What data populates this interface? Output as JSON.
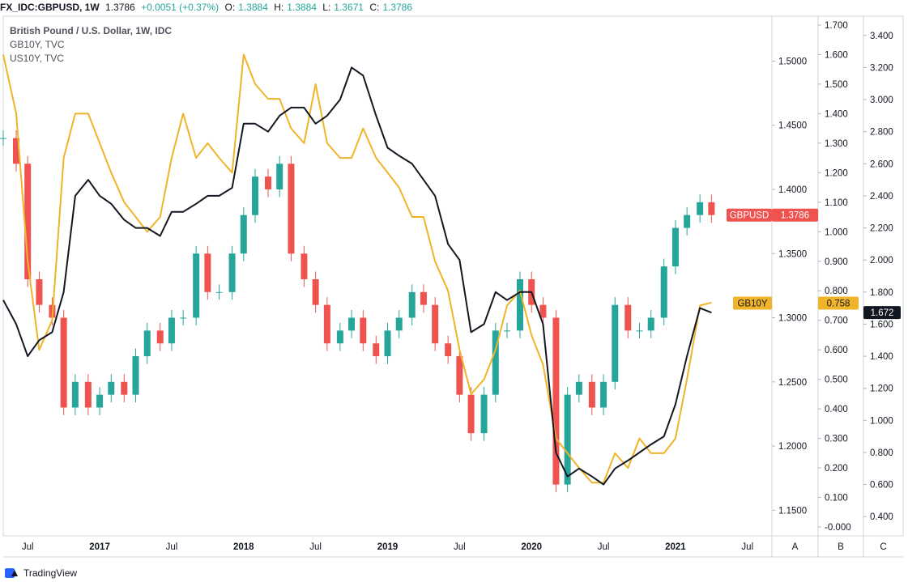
{
  "header": {
    "symbol": "FX_IDC:GBPUSD, 1W",
    "last": "1.3786",
    "change": "+0.0051 (+0.37%)",
    "open_label": "O:",
    "open": "1.3884",
    "high_label": "H:",
    "high": "1.3884",
    "low_label": "L:",
    "low": "1.3671",
    "close_label": "C:",
    "close": "1.3786"
  },
  "legend": {
    "main": "British Pound / U.S. Dollar, 1W, IDC",
    "series2": "GB10Y, TVC",
    "series3": "US10Y, TVC"
  },
  "footer": {
    "brand": "TradingView"
  },
  "scale_buttons": [
    "A",
    "B",
    "C"
  ],
  "chart_data": {
    "type": "line",
    "x_ticks": [
      "Jul",
      "2017",
      "Jul",
      "2018",
      "Jul",
      "2019",
      "Jul",
      "2020",
      "Jul",
      "2021",
      "Jul"
    ],
    "x_range": [
      2016.33,
      2021.67
    ],
    "axes": {
      "A": {
        "ticks": [
          "1.5000",
          "1.4500",
          "1.4000",
          "1.3500",
          "1.3000",
          "1.2500",
          "1.2000",
          "1.1500"
        ],
        "range": [
          1.13,
          1.535
        ]
      },
      "B": {
        "ticks": [
          "1.700",
          "1.600",
          "1.500",
          "1.400",
          "1.300",
          "1.200",
          "1.100",
          "1.000",
          "0.900",
          "0.800",
          "0.700",
          "0.600",
          "0.500",
          "0.400",
          "0.300",
          "0.200",
          "0.100",
          "-0.000"
        ],
        "range": [
          -0.03,
          1.73
        ]
      },
      "C": {
        "ticks": [
          "3.400",
          "3.200",
          "3.000",
          "2.800",
          "2.600",
          "2.400",
          "2.200",
          "2.000",
          "1.800",
          "1.600",
          "1.400",
          "1.200",
          "1.000",
          "0.800",
          "0.600",
          "0.400"
        ],
        "range": [
          0.28,
          3.52
        ]
      }
    },
    "series": [
      {
        "name": "GBPUSD",
        "axis": "A",
        "kind": "candles",
        "label": "1.3786",
        "x": [
          2016.33,
          2016.42,
          2016.5,
          2016.58,
          2016.67,
          2016.75,
          2016.83,
          2016.92,
          2017.0,
          2017.08,
          2017.17,
          2017.25,
          2017.33,
          2017.42,
          2017.5,
          2017.58,
          2017.67,
          2017.75,
          2017.83,
          2017.92,
          2018.0,
          2018.08,
          2018.17,
          2018.25,
          2018.33,
          2018.42,
          2018.5,
          2018.58,
          2018.67,
          2018.75,
          2018.83,
          2018.92,
          2019.0,
          2019.08,
          2019.17,
          2019.25,
          2019.33,
          2019.42,
          2019.5,
          2019.58,
          2019.67,
          2019.75,
          2019.83,
          2019.92,
          2020.0,
          2020.08,
          2020.17,
          2020.25,
          2020.33,
          2020.42,
          2020.5,
          2020.58,
          2020.67,
          2020.75,
          2020.83,
          2020.92,
          2021.0,
          2021.08,
          2021.17,
          2021.25
        ],
        "values": [
          1.44,
          1.42,
          1.33,
          1.31,
          1.3,
          1.23,
          1.25,
          1.23,
          1.24,
          1.25,
          1.24,
          1.27,
          1.29,
          1.28,
          1.3,
          1.3,
          1.35,
          1.32,
          1.32,
          1.35,
          1.38,
          1.41,
          1.4,
          1.42,
          1.35,
          1.33,
          1.31,
          1.28,
          1.29,
          1.3,
          1.28,
          1.27,
          1.29,
          1.3,
          1.32,
          1.31,
          1.28,
          1.27,
          1.24,
          1.21,
          1.24,
          1.29,
          1.29,
          1.33,
          1.31,
          1.3,
          1.17,
          1.24,
          1.25,
          1.23,
          1.25,
          1.31,
          1.29,
          1.29,
          1.3,
          1.34,
          1.37,
          1.38,
          1.39,
          1.38
        ]
      },
      {
        "name": "GB10Y",
        "axis": "B",
        "kind": "line",
        "label": "0.758",
        "color": "#f0b429",
        "x": [
          2016.33,
          2016.42,
          2016.5,
          2016.58,
          2016.67,
          2016.75,
          2016.83,
          2016.92,
          2017.0,
          2017.08,
          2017.17,
          2017.25,
          2017.33,
          2017.42,
          2017.5,
          2017.58,
          2017.67,
          2017.75,
          2017.83,
          2017.92,
          2018.0,
          2018.08,
          2018.17,
          2018.25,
          2018.33,
          2018.42,
          2018.5,
          2018.58,
          2018.67,
          2018.75,
          2018.83,
          2018.92,
          2019.0,
          2019.08,
          2019.17,
          2019.25,
          2019.33,
          2019.42,
          2019.5,
          2019.58,
          2019.67,
          2019.75,
          2019.83,
          2019.92,
          2020.0,
          2020.08,
          2020.17,
          2020.25,
          2020.33,
          2020.42,
          2020.5,
          2020.58,
          2020.67,
          2020.75,
          2020.83,
          2020.92,
          2021.0,
          2021.08,
          2021.17,
          2021.25
        ],
        "values": [
          1.6,
          1.4,
          0.9,
          0.6,
          0.7,
          1.25,
          1.4,
          1.4,
          1.3,
          1.2,
          1.1,
          1.05,
          1.0,
          1.05,
          1.25,
          1.4,
          1.25,
          1.3,
          1.25,
          1.2,
          1.6,
          1.5,
          1.45,
          1.45,
          1.35,
          1.3,
          1.5,
          1.3,
          1.25,
          1.25,
          1.35,
          1.25,
          1.2,
          1.15,
          1.05,
          1.05,
          0.9,
          0.8,
          0.6,
          0.45,
          0.5,
          0.6,
          0.75,
          0.8,
          0.65,
          0.55,
          0.3,
          0.25,
          0.2,
          0.15,
          0.15,
          0.25,
          0.2,
          0.3,
          0.25,
          0.25,
          0.3,
          0.5,
          0.75,
          0.76
        ]
      },
      {
        "name": "US10Y",
        "axis": "C",
        "kind": "line",
        "label": "1.672",
        "color": "#131722",
        "x": [
          2016.33,
          2016.42,
          2016.5,
          2016.58,
          2016.67,
          2016.75,
          2016.83,
          2016.92,
          2017.0,
          2017.08,
          2017.17,
          2017.25,
          2017.33,
          2017.42,
          2017.5,
          2017.58,
          2017.67,
          2017.75,
          2017.83,
          2017.92,
          2018.0,
          2018.08,
          2018.17,
          2018.25,
          2018.33,
          2018.42,
          2018.5,
          2018.58,
          2018.67,
          2018.75,
          2018.83,
          2018.92,
          2019.0,
          2019.08,
          2019.17,
          2019.25,
          2019.33,
          2019.42,
          2019.5,
          2019.58,
          2019.67,
          2019.75,
          2019.83,
          2019.92,
          2020.0,
          2020.08,
          2020.17,
          2020.25,
          2020.33,
          2020.42,
          2020.5,
          2020.58,
          2020.67,
          2020.75,
          2020.83,
          2020.92,
          2021.0,
          2021.08,
          2021.17,
          2021.25
        ],
        "values": [
          1.75,
          1.6,
          1.4,
          1.5,
          1.55,
          1.8,
          2.4,
          2.5,
          2.4,
          2.35,
          2.25,
          2.2,
          2.2,
          2.15,
          2.3,
          2.3,
          2.35,
          2.4,
          2.4,
          2.45,
          2.85,
          2.85,
          2.8,
          2.9,
          2.95,
          2.95,
          2.85,
          2.9,
          3.0,
          3.2,
          3.15,
          2.9,
          2.7,
          2.65,
          2.6,
          2.5,
          2.4,
          2.1,
          2.0,
          1.55,
          1.6,
          1.8,
          1.75,
          1.8,
          1.8,
          1.6,
          0.8,
          0.65,
          0.7,
          0.65,
          0.6,
          0.7,
          0.75,
          0.8,
          0.85,
          0.9,
          1.1,
          1.4,
          1.7,
          1.672
        ]
      }
    ]
  }
}
